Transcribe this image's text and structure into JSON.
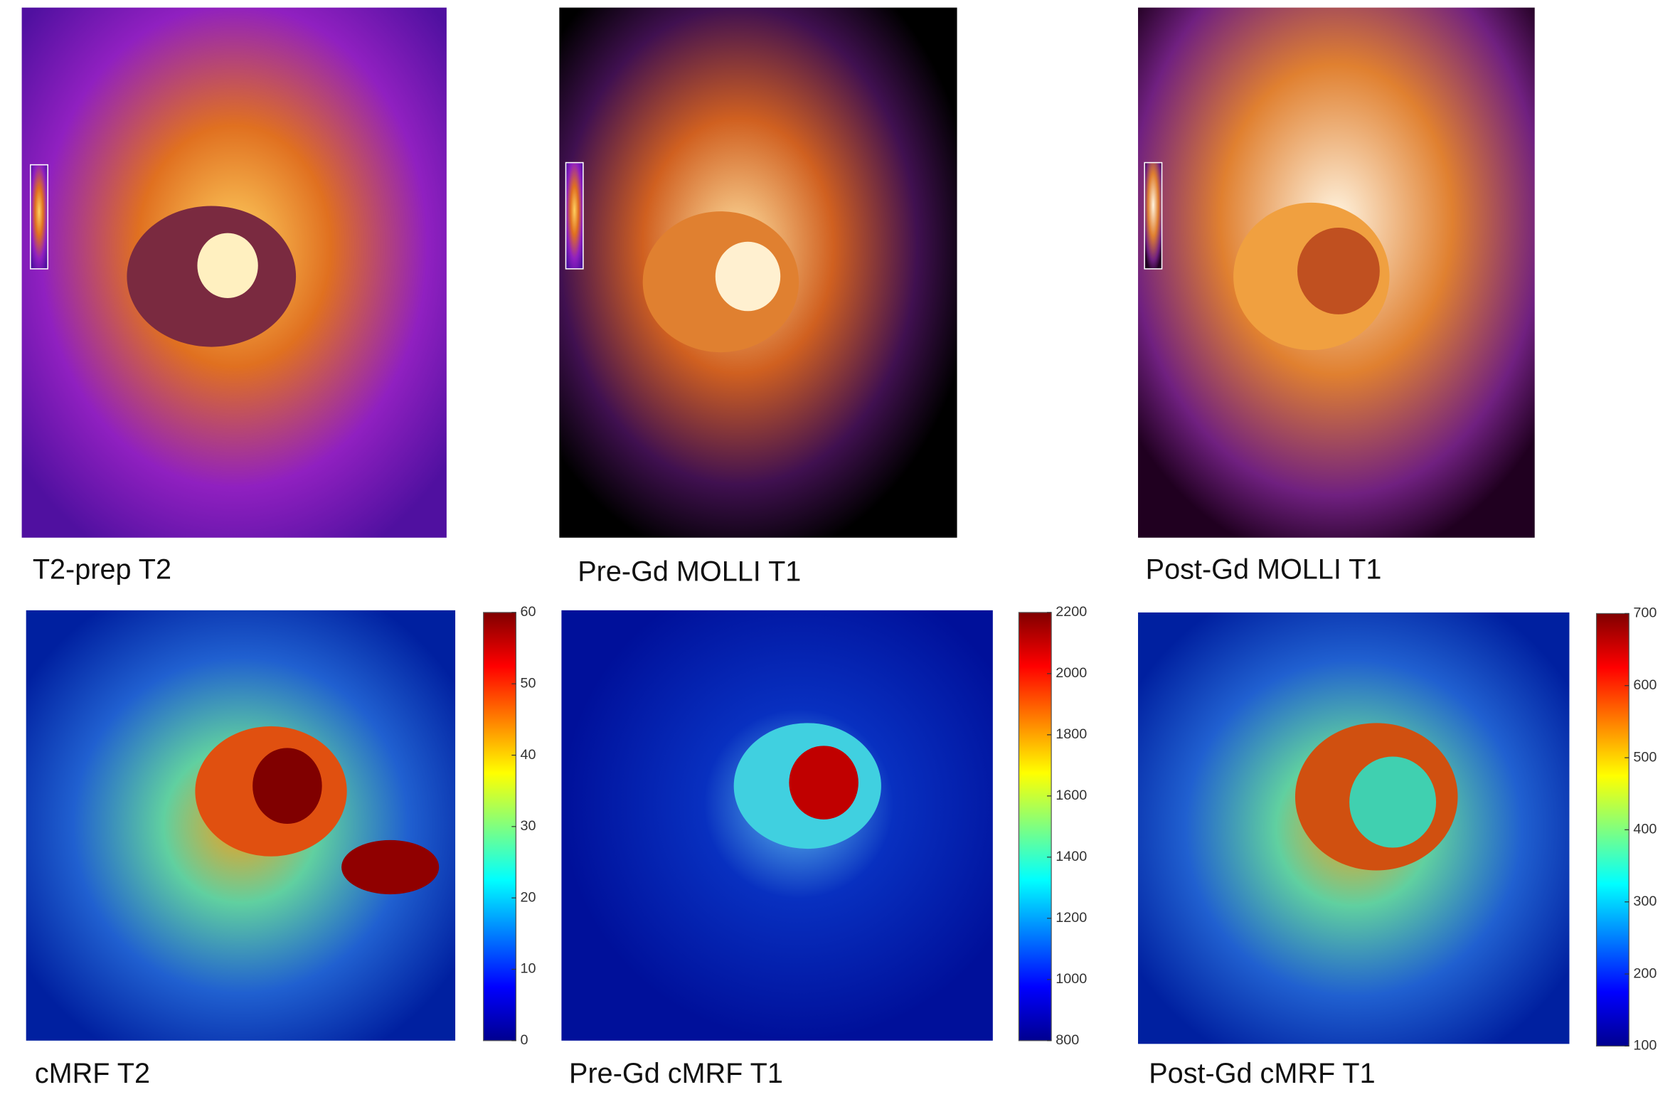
{
  "panels": [
    {
      "label": "T2-prep T2"
    },
    {
      "label": "Pre-Gd MOLLI T1"
    },
    {
      "label": "Post-Gd MOLLI T1"
    },
    {
      "label": "cMRF T2",
      "colorbar": {
        "lim": [
          0,
          60
        ],
        "ticks": [
          0,
          10,
          20,
          30,
          40,
          50,
          60
        ]
      }
    },
    {
      "label": "Pre-Gd cMRF T1",
      "colorbar": {
        "lim": [
          800,
          2200
        ],
        "ticks": [
          800,
          1000,
          1200,
          1400,
          1600,
          1800,
          2000,
          2200
        ]
      }
    },
    {
      "label": "Post-Gd cMRF T1",
      "colorbar": {
        "lim": [
          100,
          700
        ],
        "ticks": [
          100,
          200,
          300,
          400,
          500,
          600,
          700
        ]
      }
    }
  ]
}
